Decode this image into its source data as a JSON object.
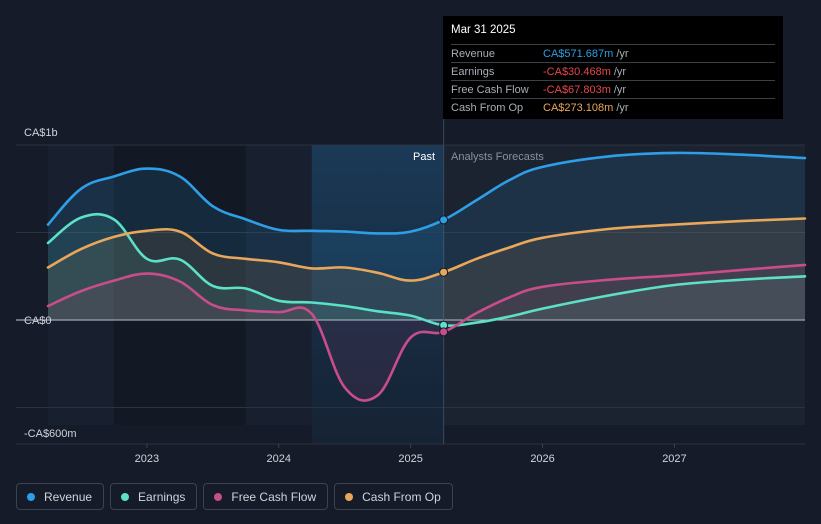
{
  "tooltip": {
    "date": "Mar 31 2025",
    "rows": [
      {
        "label": "Revenue",
        "value": "CA$571.687m",
        "unit": "/yr",
        "color": "#2e9fe6"
      },
      {
        "label": "Earnings",
        "value": "-CA$30.468m",
        "unit": "/yr",
        "color": "#e5484d"
      },
      {
        "label": "Free Cash Flow",
        "value": "-CA$67.803m",
        "unit": "/yr",
        "color": "#e5484d"
      },
      {
        "label": "Cash From Op",
        "value": "CA$273.108m",
        "unit": "/yr",
        "color": "#e8a75a"
      }
    ]
  },
  "markers": {
    "past": "Past",
    "forecast": "Analysts Forecasts"
  },
  "legend": [
    {
      "label": "Revenue",
      "color": "#2e9fe6"
    },
    {
      "label": "Earnings",
      "color": "#5ce0c8"
    },
    {
      "label": "Free Cash Flow",
      "color": "#c84d8b"
    },
    {
      "label": "Cash From Op",
      "color": "#e8a75a"
    }
  ],
  "chart_data": {
    "type": "area",
    "title": "",
    "units": "CA$ millions",
    "ylim": [
      -600,
      1000
    ],
    "y_ticks": [
      {
        "value": 1000,
        "label": "CA$1b"
      },
      {
        "value": 0,
        "label": "CA$0"
      },
      {
        "value": -600,
        "label": "-CA$600m"
      }
    ],
    "x_range": [
      2022.25,
      2027.99
    ],
    "x_ticks": [
      {
        "value": 2023.0,
        "label": "2023"
      },
      {
        "value": 2024.0,
        "label": "2024"
      },
      {
        "value": 2025.0,
        "label": "2025"
      },
      {
        "value": 2026.0,
        "label": "2026"
      },
      {
        "value": 2027.0,
        "label": "2027"
      }
    ],
    "forecast_start": 2025.25,
    "shaded_past_start": 2024.25,
    "series": [
      {
        "name": "Revenue",
        "color": "#2e9fe6",
        "points": [
          [
            2022.25,
            545
          ],
          [
            2022.5,
            750
          ],
          [
            2022.75,
            820
          ],
          [
            2023.0,
            865
          ],
          [
            2023.25,
            820
          ],
          [
            2023.5,
            650
          ],
          [
            2023.75,
            575
          ],
          [
            2024.0,
            515
          ],
          [
            2024.25,
            510
          ],
          [
            2024.5,
            505
          ],
          [
            2024.75,
            495
          ],
          [
            2025.0,
            505
          ],
          [
            2025.25,
            572
          ],
          [
            2025.5,
            685
          ],
          [
            2025.75,
            800
          ],
          [
            2026.0,
            875
          ],
          [
            2026.5,
            935
          ],
          [
            2027.0,
            955
          ],
          [
            2027.5,
            945
          ],
          [
            2027.99,
            925
          ]
        ]
      },
      {
        "name": "Earnings",
        "color": "#5ce0c8",
        "points": [
          [
            2022.25,
            440
          ],
          [
            2022.5,
            585
          ],
          [
            2022.75,
            575
          ],
          [
            2023.0,
            350
          ],
          [
            2023.25,
            345
          ],
          [
            2023.5,
            195
          ],
          [
            2023.75,
            180
          ],
          [
            2024.0,
            110
          ],
          [
            2024.25,
            100
          ],
          [
            2024.5,
            80
          ],
          [
            2024.75,
            50
          ],
          [
            2025.0,
            25
          ],
          [
            2025.25,
            -30
          ],
          [
            2025.5,
            -15
          ],
          [
            2025.75,
            20
          ],
          [
            2026.0,
            65
          ],
          [
            2026.5,
            140
          ],
          [
            2027.0,
            200
          ],
          [
            2027.5,
            230
          ],
          [
            2027.99,
            250
          ]
        ]
      },
      {
        "name": "Free Cash Flow",
        "color": "#c84d8b",
        "points": [
          [
            2022.25,
            80
          ],
          [
            2022.5,
            165
          ],
          [
            2022.75,
            225
          ],
          [
            2023.0,
            265
          ],
          [
            2023.25,
            220
          ],
          [
            2023.5,
            85
          ],
          [
            2023.75,
            55
          ],
          [
            2024.0,
            45
          ],
          [
            2024.25,
            35
          ],
          [
            2024.5,
            -385
          ],
          [
            2024.75,
            -430
          ],
          [
            2025.0,
            -100
          ],
          [
            2025.25,
            -68
          ],
          [
            2025.5,
            40
          ],
          [
            2025.75,
            130
          ],
          [
            2026.0,
            190
          ],
          [
            2026.5,
            230
          ],
          [
            2027.0,
            255
          ],
          [
            2027.5,
            285
          ],
          [
            2027.99,
            315
          ]
        ]
      },
      {
        "name": "Cash From Op",
        "color": "#e8a75a",
        "points": [
          [
            2022.25,
            300
          ],
          [
            2022.5,
            405
          ],
          [
            2022.75,
            475
          ],
          [
            2023.0,
            510
          ],
          [
            2023.25,
            505
          ],
          [
            2023.5,
            380
          ],
          [
            2023.75,
            350
          ],
          [
            2024.0,
            330
          ],
          [
            2024.25,
            295
          ],
          [
            2024.5,
            300
          ],
          [
            2024.75,
            270
          ],
          [
            2025.0,
            225
          ],
          [
            2025.25,
            273
          ],
          [
            2025.5,
            350
          ],
          [
            2025.75,
            415
          ],
          [
            2026.0,
            470
          ],
          [
            2026.5,
            520
          ],
          [
            2027.0,
            545
          ],
          [
            2027.5,
            565
          ],
          [
            2027.99,
            580
          ]
        ]
      }
    ]
  }
}
